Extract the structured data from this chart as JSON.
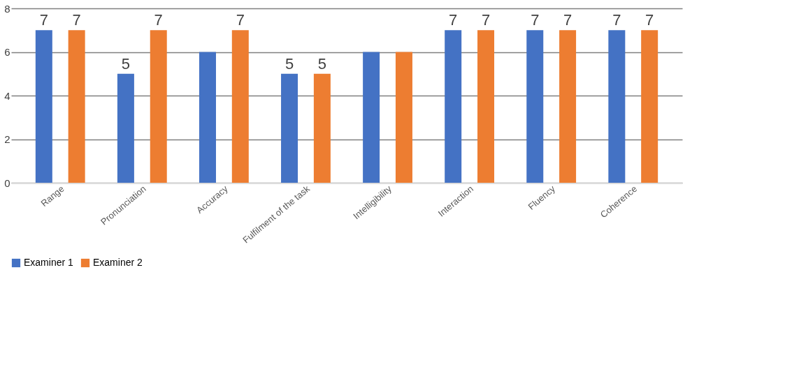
{
  "chart_data": {
    "type": "bar",
    "categories": [
      "Range",
      "Pronunciation",
      "Accuracy",
      "Fulfilment of the task",
      "Intelligibility",
      "Interaction",
      "Fluency",
      "Coherence"
    ],
    "series": [
      {
        "name": "Examiner 1",
        "color": "#4472c4",
        "values": [
          7,
          5,
          6,
          5,
          6,
          7,
          7,
          7
        ],
        "value_labels": [
          "7",
          "5",
          null,
          "5",
          null,
          "7",
          "7",
          "7"
        ]
      },
      {
        "name": "Examiner 2",
        "color": "#ed7d31",
        "values": [
          7,
          7,
          7,
          5,
          6,
          7,
          7,
          7
        ],
        "value_labels": [
          "7",
          "7",
          "7",
          "5",
          null,
          "7",
          "7",
          "7"
        ]
      }
    ],
    "ylim": [
      0,
      8
    ],
    "yticks": [
      0,
      2,
      4,
      6,
      8
    ],
    "grid": "y",
    "legend": "bottom"
  }
}
